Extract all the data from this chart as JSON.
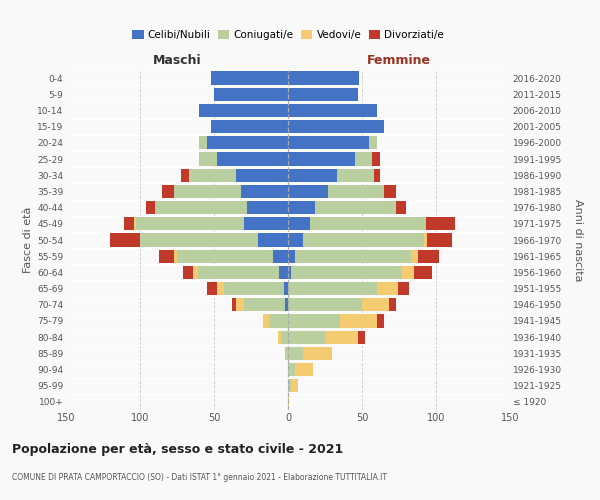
{
  "age_groups": [
    "100+",
    "95-99",
    "90-94",
    "85-89",
    "80-84",
    "75-79",
    "70-74",
    "65-69",
    "60-64",
    "55-59",
    "50-54",
    "45-49",
    "40-44",
    "35-39",
    "30-34",
    "25-29",
    "20-24",
    "15-19",
    "10-14",
    "5-9",
    "0-4"
  ],
  "birth_years": [
    "≤ 1920",
    "1921-1925",
    "1926-1930",
    "1931-1935",
    "1936-1940",
    "1941-1945",
    "1946-1950",
    "1951-1955",
    "1956-1960",
    "1961-1965",
    "1966-1970",
    "1971-1975",
    "1976-1980",
    "1981-1985",
    "1986-1990",
    "1991-1995",
    "1996-2000",
    "2001-2005",
    "2006-2010",
    "2011-2015",
    "2016-2020"
  ],
  "males": {
    "celibi": [
      0,
      0,
      0,
      0,
      0,
      0,
      2,
      3,
      6,
      10,
      20,
      30,
      28,
      32,
      35,
      48,
      55,
      52,
      60,
      50,
      52
    ],
    "coniugati": [
      0,
      0,
      0,
      2,
      5,
      13,
      28,
      40,
      55,
      65,
      80,
      73,
      62,
      45,
      32,
      12,
      5,
      0,
      0,
      0,
      0
    ],
    "vedovi": [
      0,
      0,
      0,
      0,
      2,
      4,
      5,
      5,
      3,
      2,
      0,
      1,
      0,
      0,
      0,
      0,
      0,
      0,
      0,
      0,
      0
    ],
    "divorziati": [
      0,
      0,
      0,
      0,
      0,
      0,
      3,
      7,
      7,
      10,
      20,
      7,
      6,
      8,
      5,
      0,
      0,
      0,
      0,
      0,
      0
    ]
  },
  "females": {
    "nubili": [
      0,
      0,
      0,
      0,
      0,
      0,
      0,
      0,
      2,
      5,
      10,
      15,
      18,
      27,
      33,
      45,
      55,
      65,
      60,
      47,
      48
    ],
    "coniugate": [
      0,
      2,
      5,
      10,
      25,
      35,
      50,
      60,
      75,
      78,
      82,
      78,
      55,
      38,
      25,
      12,
      5,
      0,
      0,
      0,
      0
    ],
    "vedove": [
      1,
      5,
      12,
      20,
      22,
      25,
      18,
      14,
      8,
      5,
      2,
      0,
      0,
      0,
      0,
      0,
      0,
      0,
      0,
      0,
      0
    ],
    "divorziate": [
      0,
      0,
      0,
      0,
      5,
      5,
      5,
      8,
      12,
      14,
      17,
      20,
      7,
      8,
      4,
      5,
      0,
      0,
      0,
      0,
      0
    ]
  },
  "colors": {
    "celibi": "#4472C4",
    "coniugati": "#BACFA0",
    "vedovi": "#F5CB72",
    "divorziati": "#C0392B"
  },
  "xlim": 150,
  "title": "Popolazione per età, sesso e stato civile - 2021",
  "subtitle": "COMUNE DI PRATA CAMPORTACCIO (SO) - Dati ISTAT 1° gennaio 2021 - Elaborazione TUTTITALIA.IT",
  "ylabel_left": "Fasce di età",
  "ylabel_right": "Anni di nascita",
  "label_maschi": "Maschi",
  "label_femmine": "Femmine",
  "legend_labels": [
    "Celibi/Nubili",
    "Coniugati/e",
    "Vedovi/e",
    "Divorziati/e"
  ],
  "bg_color": "#f9f9f9",
  "bar_height": 0.82,
  "grid_color": "#cccccc",
  "text_color": "#555555"
}
